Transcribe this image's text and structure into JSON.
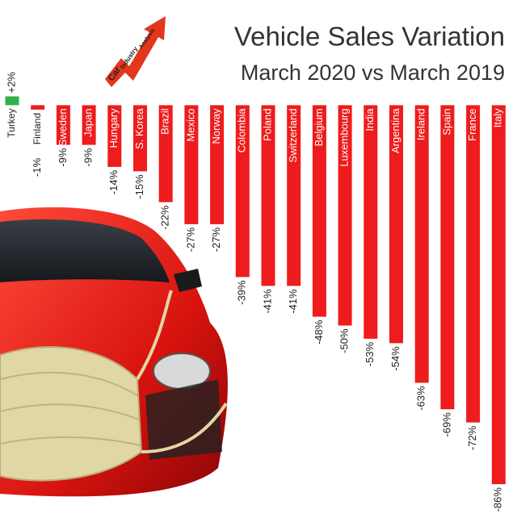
{
  "chart_data": {
    "type": "bar",
    "title": "Vehicle Sales Variation",
    "subtitle": "March 2020 vs March 2019",
    "logo": [
      "Car",
      "Industry",
      "Analysis"
    ],
    "categories": [
      "Turkey",
      "Finland",
      "Sweden",
      "Japan",
      "Hungary",
      "S. Korea",
      "Brazil",
      "Mexico",
      "Norway",
      "Colombia",
      "Poland",
      "Switzerland",
      "Belgium",
      "Luxembourg",
      "India",
      "Argentina",
      "Ireland",
      "Spain",
      "France",
      "Italy"
    ],
    "values": [
      2,
      -1,
      -9,
      -9,
      -14,
      -15,
      -22,
      -27,
      -27,
      -39,
      -41,
      -41,
      -48,
      -50,
      -53,
      -54,
      -63,
      -69,
      -72,
      -86
    ],
    "value_labels": [
      "+2%",
      "-1%",
      "-9%",
      "-9%",
      "-14%",
      "-15%",
      "-22%",
      "-27%",
      "-27%",
      "-39%",
      "-41%",
      "-41%",
      "-48%",
      "-50%",
      "-53%",
      "-54%",
      "-63%",
      "-69%",
      "-72%",
      "-86%"
    ],
    "colors": {
      "positive": "#2fb24a",
      "negative": "#ee1c1c"
    },
    "ylim": [
      -88,
      3
    ]
  }
}
